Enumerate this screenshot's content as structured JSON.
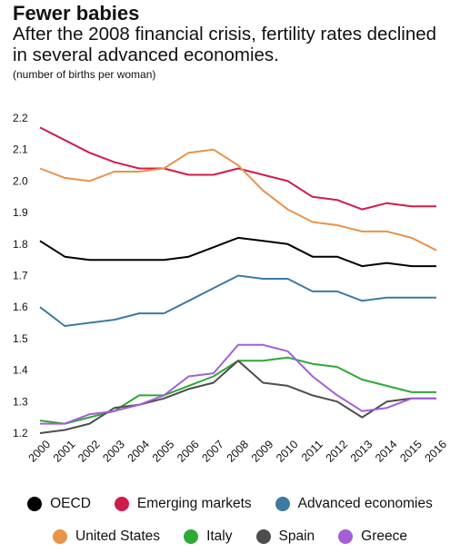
{
  "title": "Fewer babies",
  "subtitle": "After the 2008 financial crisis, fertility rates declined in several advanced economies.",
  "unit_note": "(number of births per woman)",
  "chart_data": {
    "type": "line",
    "x": [
      "2000",
      "2001",
      "2002",
      "2003",
      "2004",
      "2005",
      "2006",
      "2007",
      "2008",
      "2009",
      "2010",
      "2011",
      "2012",
      "2013",
      "2014",
      "2015",
      "2016"
    ],
    "ylim": [
      1.2,
      2.2
    ],
    "yticks": [
      "1.2",
      "1.3",
      "1.4",
      "1.5",
      "1.6",
      "1.7",
      "1.8",
      "1.9",
      "2.0",
      "2.1",
      "2.2"
    ],
    "grid": false,
    "legend_position": "bottom",
    "series": [
      {
        "name": "OECD",
        "color": "#000000",
        "values": [
          1.81,
          1.76,
          1.75,
          1.75,
          1.75,
          1.75,
          1.76,
          1.79,
          1.82,
          1.81,
          1.8,
          1.76,
          1.76,
          1.73,
          1.74,
          1.73,
          1.73
        ]
      },
      {
        "name": "Emerging markets",
        "color": "#d01c4b",
        "values": [
          2.17,
          2.13,
          2.09,
          2.06,
          2.04,
          2.04,
          2.02,
          2.02,
          2.04,
          2.02,
          2.0,
          1.95,
          1.94,
          1.91,
          1.93,
          1.92,
          1.92
        ]
      },
      {
        "name": "Advanced economies",
        "color": "#3d7aa0",
        "values": [
          1.6,
          1.54,
          1.55,
          1.56,
          1.58,
          1.58,
          1.62,
          1.66,
          1.7,
          1.69,
          1.69,
          1.65,
          1.65,
          1.62,
          1.63,
          1.63,
          1.63
        ]
      },
      {
        "name": "United States",
        "color": "#e8934a",
        "values": [
          2.04,
          2.01,
          2.0,
          2.03,
          2.03,
          2.04,
          2.09,
          2.1,
          2.05,
          1.97,
          1.91,
          1.87,
          1.86,
          1.84,
          1.84,
          1.82,
          1.78
        ]
      },
      {
        "name": "Italy",
        "color": "#2ea836",
        "values": [
          1.24,
          1.23,
          1.25,
          1.27,
          1.32,
          1.32,
          1.35,
          1.38,
          1.43,
          1.43,
          1.44,
          1.42,
          1.41,
          1.37,
          1.35,
          1.33,
          1.33
        ]
      },
      {
        "name": "Spain",
        "color": "#4d4d4d",
        "values": [
          1.2,
          1.21,
          1.23,
          1.28,
          1.29,
          1.31,
          1.34,
          1.36,
          1.43,
          1.36,
          1.35,
          1.32,
          1.3,
          1.25,
          1.3,
          1.31,
          1.31
        ]
      },
      {
        "name": "Greece",
        "color": "#a35fd6",
        "values": [
          1.23,
          1.23,
          1.26,
          1.27,
          1.29,
          1.32,
          1.38,
          1.39,
          1.48,
          1.48,
          1.46,
          1.38,
          1.32,
          1.27,
          1.28,
          1.31,
          1.31
        ]
      }
    ]
  }
}
